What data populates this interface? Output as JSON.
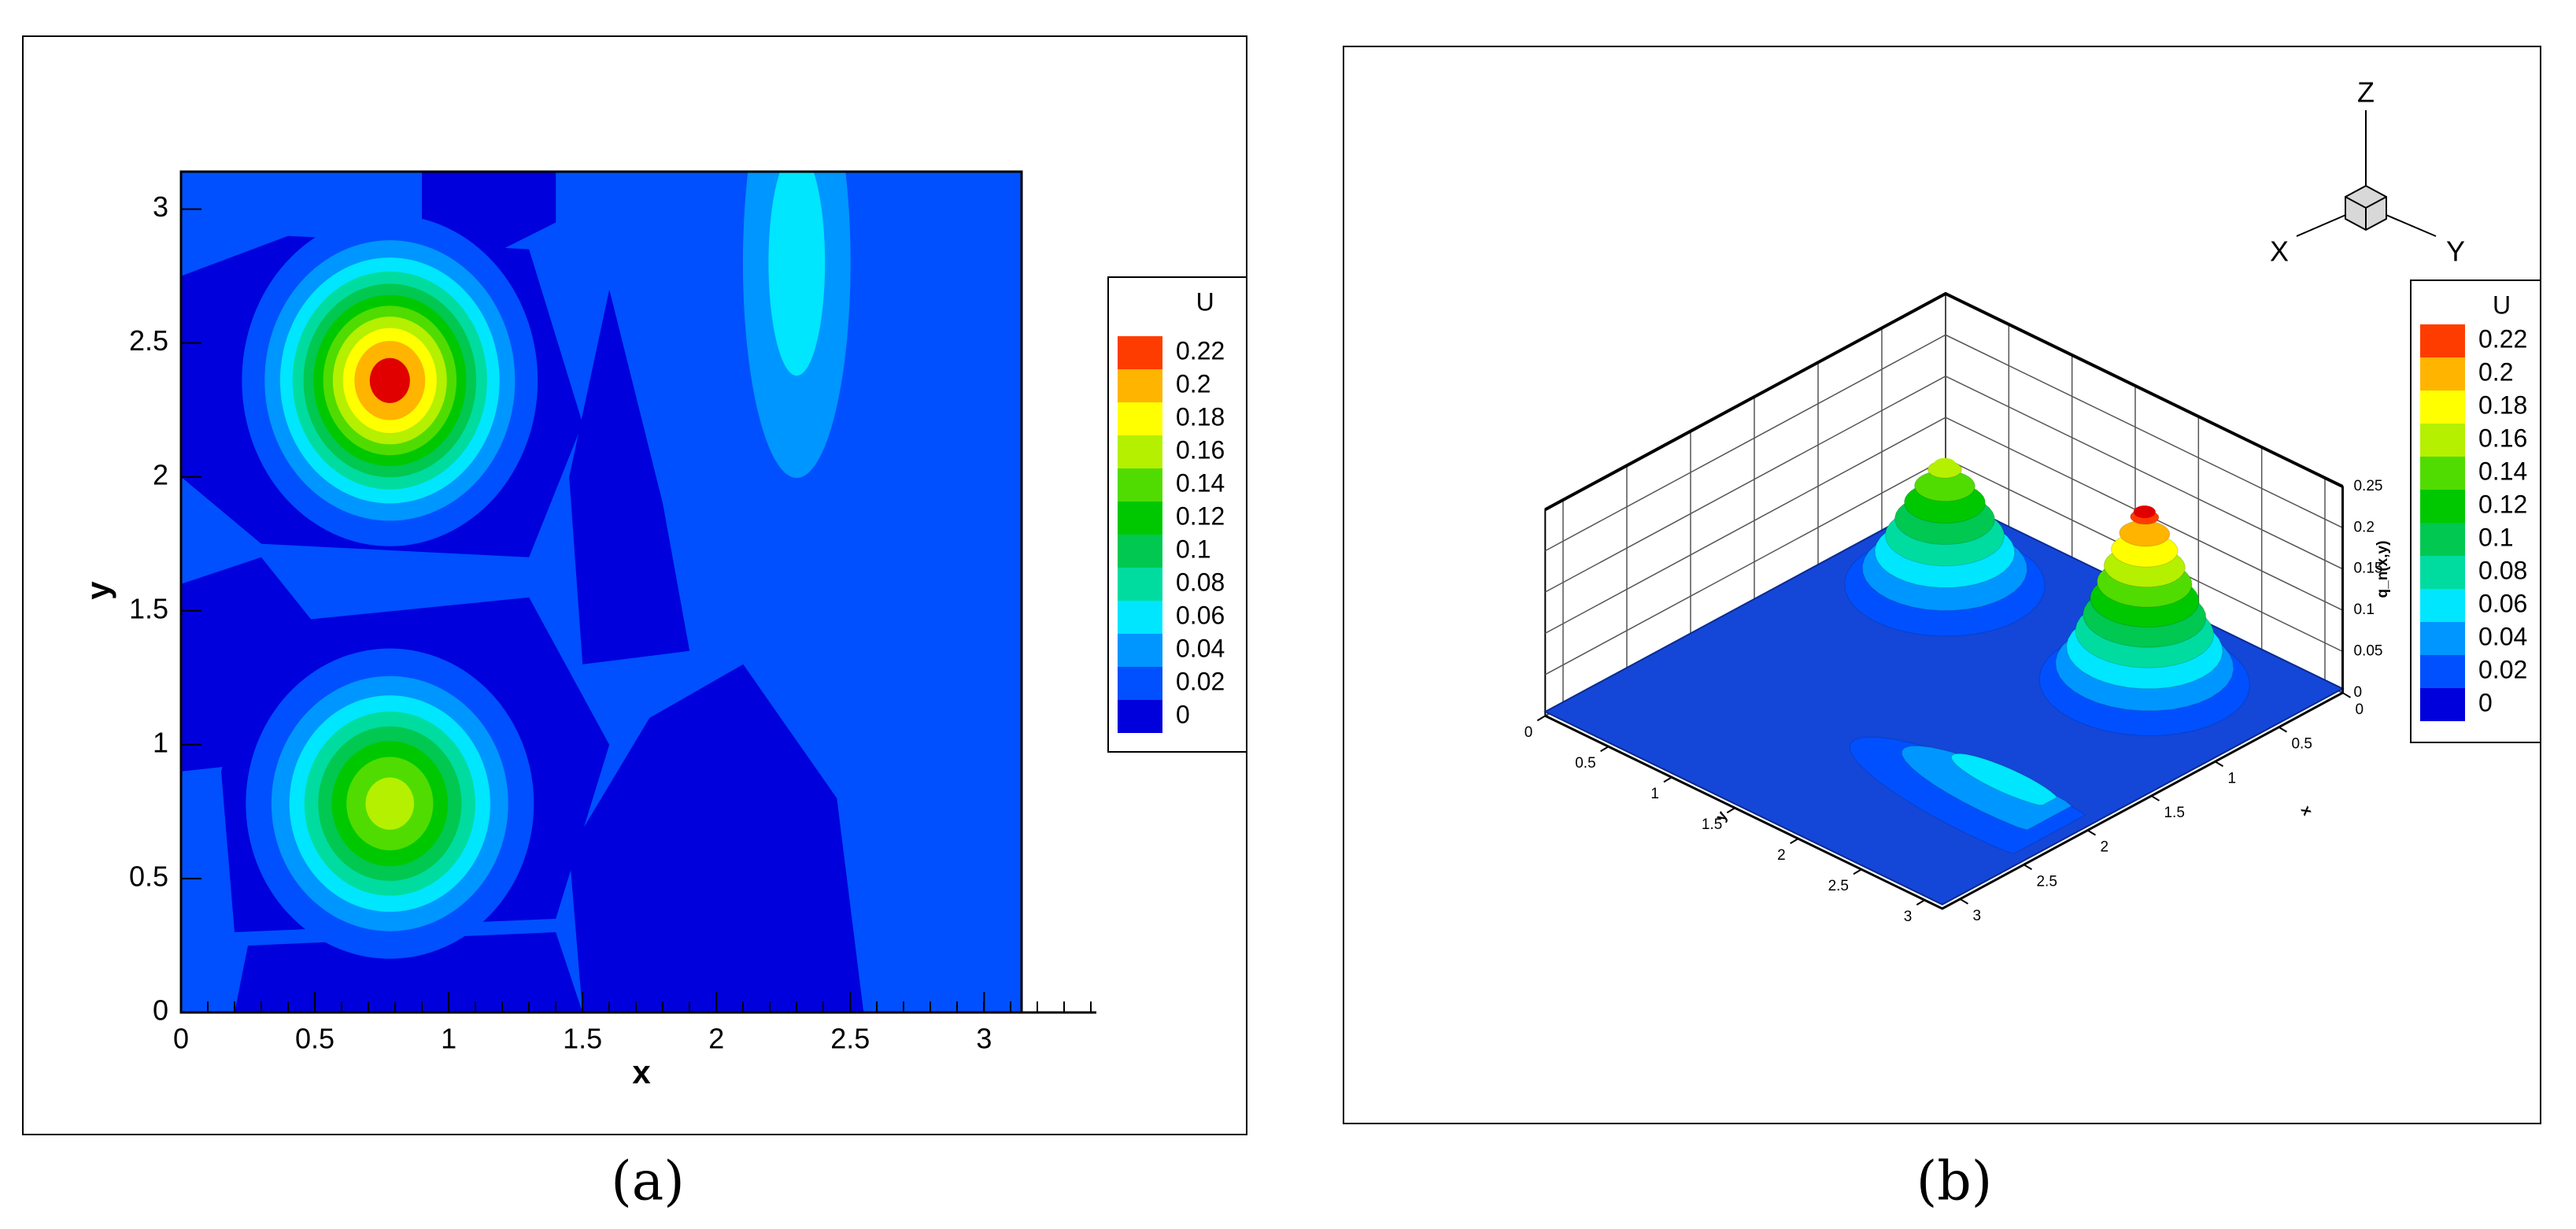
{
  "chart_data": [
    {
      "type": "contour",
      "xlabel": "x",
      "ylabel": "y",
      "xlim": [
        0,
        3.14
      ],
      "ylim": [
        0,
        3.14
      ],
      "xticks": [
        0,
        0.5,
        1,
        1.5,
        2,
        2.5,
        3
      ],
      "yticks": [
        0,
        0.5,
        1,
        1.5,
        2,
        2.5,
        3
      ],
      "colorbar": {
        "title": "U",
        "levels": [
          0,
          0.02,
          0.04,
          0.06,
          0.08,
          0.1,
          0.12,
          0.14,
          0.16,
          0.18,
          0.2,
          0.22
        ],
        "colors": [
          "#0000dc",
          "#0050ff",
          "#0096ff",
          "#00e6ff",
          "#00dca0",
          "#00c850",
          "#00c800",
          "#50dc00",
          "#b4f000",
          "#ffff00",
          "#ffb400",
          "#ff3c00"
        ]
      },
      "peaks": [
        {
          "x": 0.78,
          "y": 2.36,
          "value": 0.23
        },
        {
          "x": 0.78,
          "y": 0.78,
          "value": 0.17
        },
        {
          "x": 2.3,
          "y": 2.8,
          "value": 0.07
        }
      ],
      "caption": "(a)"
    },
    {
      "type": "surface",
      "xlabel": "x",
      "ylabel": "y",
      "zlabel": "q_n(x,y)",
      "xlim": [
        0,
        3.14
      ],
      "ylim": [
        0,
        3.14
      ],
      "zlim": [
        0,
        0.25
      ],
      "xticks": [
        0,
        0.5,
        1,
        1.5,
        2,
        2.5,
        3
      ],
      "yticks": [
        0,
        0.5,
        1,
        1.5,
        2,
        2.5,
        3
      ],
      "zticks": [
        0,
        0.05,
        0.1,
        0.15,
        0.2,
        0.25
      ],
      "triad": {
        "x": "X",
        "y": "Y",
        "z": "Z"
      },
      "colorbar": {
        "title": "U",
        "levels": [
          0,
          0.02,
          0.04,
          0.06,
          0.08,
          0.1,
          0.12,
          0.14,
          0.16,
          0.18,
          0.2,
          0.22
        ],
        "colors": [
          "#0000dc",
          "#0050ff",
          "#0096ff",
          "#00e6ff",
          "#00dca0",
          "#00c850",
          "#00c800",
          "#50dc00",
          "#b4f000",
          "#ffff00",
          "#ffb400",
          "#ff3c00"
        ]
      },
      "peaks": [
        {
          "x": 0.78,
          "y": 2.36,
          "value": 0.23
        },
        {
          "x": 0.78,
          "y": 0.78,
          "value": 0.17
        },
        {
          "x": 2.3,
          "y": 2.8,
          "value": 0.07
        }
      ],
      "caption": "(b)"
    }
  ]
}
